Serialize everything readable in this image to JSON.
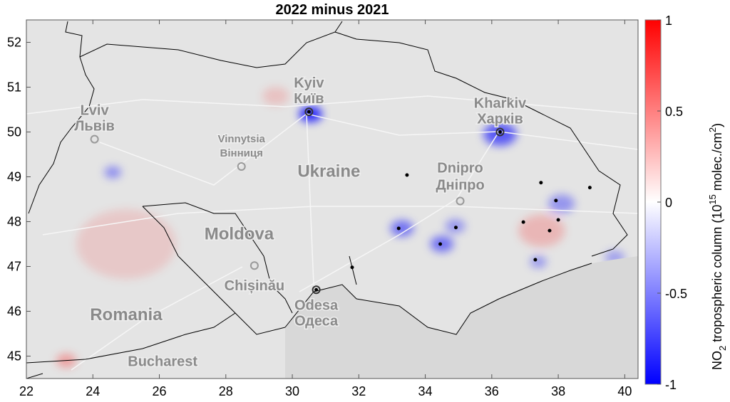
{
  "chart_data": {
    "type": "heatmap",
    "title": "2022 minus 2021",
    "xlim": [
      22,
      40.4
    ],
    "ylim": [
      44.5,
      52.5
    ],
    "xticks": [
      "22",
      "24",
      "26",
      "28",
      "30",
      "32",
      "34",
      "36",
      "38",
      "40"
    ],
    "yticks": [
      "45",
      "46",
      "47",
      "48",
      "49",
      "50",
      "51",
      "52"
    ],
    "colorbar": {
      "label_main": "NO",
      "label_sub": "2",
      "label_rest": " tropospheric column (10",
      "label_sup": "15",
      "label_units": " molec./cm",
      "label_sup2": "2",
      "label_close": ")",
      "range": [
        -1,
        1
      ],
      "ticks": [
        "1",
        "0.5",
        "0",
        "-0.5",
        "-1"
      ],
      "colors": {
        "max": "#ff0000",
        "mid": "#ffffff",
        "min": "#0000ff"
      }
    },
    "base_map_color": "#e4e4e4",
    "cities": [
      {
        "name": "Kyiv",
        "name_local": "Київ",
        "lon": 30.5,
        "lat": 50.45,
        "highlight": true
      },
      {
        "name": "Kharkiv",
        "name_local": "Харків",
        "lon": 36.25,
        "lat": 50.0,
        "highlight": true
      },
      {
        "name": "Lviv",
        "name_local": "Львів",
        "lon": 24.05,
        "lat": 49.84,
        "highlight": false
      },
      {
        "name": "Vinnytsia",
        "name_local": "Вінниця",
        "lon": 28.47,
        "lat": 49.23,
        "highlight": false
      },
      {
        "name": "Dnipro",
        "name_local": "Дніпро",
        "lon": 35.05,
        "lat": 48.46,
        "highlight": false
      },
      {
        "name": "Chișinău",
        "name_local": "",
        "lon": 28.86,
        "lat": 47.02,
        "highlight": false
      },
      {
        "name": "Odesa",
        "name_local": "Одеса",
        "lon": 30.72,
        "lat": 46.48,
        "highlight": true
      }
    ],
    "countries": [
      {
        "name": "Ukraine",
        "lon": 31.1,
        "lat": 49.0
      },
      {
        "name": "Moldova",
        "lon": 28.4,
        "lat": 47.6
      },
      {
        "name": "Romania",
        "lon": 25.0,
        "lat": 45.8
      }
    ],
    "other_labels": [
      {
        "name": "Bucharest",
        "lon": 26.1,
        "lat": 44.78
      }
    ],
    "point_sources": [
      {
        "lon": 33.45,
        "lat": 49.04
      },
      {
        "lon": 37.48,
        "lat": 48.87
      },
      {
        "lon": 38.95,
        "lat": 48.76
      },
      {
        "lon": 37.93,
        "lat": 48.47
      },
      {
        "lon": 38.0,
        "lat": 48.04
      },
      {
        "lon": 36.95,
        "lat": 47.99
      },
      {
        "lon": 37.74,
        "lat": 47.8
      },
      {
        "lon": 33.2,
        "lat": 47.85
      },
      {
        "lon": 34.92,
        "lat": 47.87
      },
      {
        "lon": 34.45,
        "lat": 47.5
      },
      {
        "lon": 37.31,
        "lat": 47.15
      },
      {
        "lon": 31.8,
        "lat": 46.98
      }
    ],
    "anomalies": [
      {
        "lon": 30.55,
        "lat": 50.4,
        "value": -0.8,
        "radius_deg": 0.35
      },
      {
        "lon": 36.25,
        "lat": 49.95,
        "value": -0.6,
        "radius_deg": 0.5
      },
      {
        "lon": 33.3,
        "lat": 47.85,
        "value": -0.5,
        "radius_deg": 0.35
      },
      {
        "lon": 34.5,
        "lat": 47.5,
        "value": -0.5,
        "radius_deg": 0.35
      },
      {
        "lon": 34.9,
        "lat": 47.9,
        "value": -0.35,
        "radius_deg": 0.3
      },
      {
        "lon": 38.1,
        "lat": 48.4,
        "value": -0.35,
        "radius_deg": 0.4
      },
      {
        "lon": 37.4,
        "lat": 47.1,
        "value": -0.35,
        "radius_deg": 0.25
      },
      {
        "lon": 24.6,
        "lat": 49.1,
        "value": -0.4,
        "radius_deg": 0.25
      },
      {
        "lon": 37.5,
        "lat": 47.8,
        "value": 0.2,
        "radius_deg": 0.7
      },
      {
        "lon": 25.0,
        "lat": 47.5,
        "value": 0.12,
        "radius_deg": 1.5
      },
      {
        "lon": 29.5,
        "lat": 50.8,
        "value": 0.15,
        "radius_deg": 0.4
      },
      {
        "lon": 23.2,
        "lat": 44.9,
        "value": 0.3,
        "radius_deg": 0.3
      },
      {
        "lon": 39.7,
        "lat": 47.2,
        "value": -0.3,
        "radius_deg": 0.3
      }
    ]
  }
}
